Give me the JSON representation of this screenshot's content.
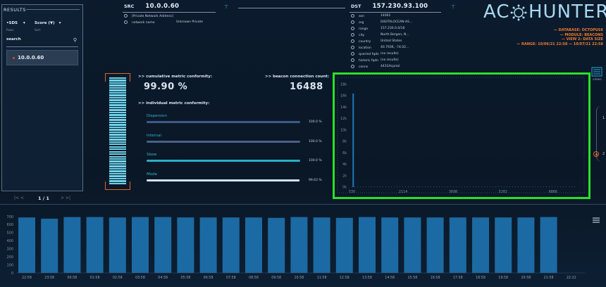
{
  "results": {
    "title": "RESULTS",
    "filter_value": "•SDS",
    "filter_label": "Score",
    "filter_arrow": "(▼)",
    "rows_label": "Rows",
    "sort_label": "Sort",
    "search_placeholder": "search",
    "items": [
      {
        "label": "10.0.0.60"
      }
    ],
    "pager": {
      "prev": "|<   <",
      "page": "1 / 1",
      "next": ">   >|"
    }
  },
  "src": {
    "label": "SRC",
    "ip": "10.0.0.60",
    "rows": [
      {
        "key": "[Private Network Address]",
        "value": ""
      },
      {
        "key": "network name",
        "value": "Unknown Private"
      }
    ]
  },
  "dst": {
    "label": "DST",
    "ip": "157.230.93.100",
    "rows": [
      {
        "key": "asn",
        "value": "14061"
      },
      {
        "key": "org",
        "value": "DIGITALOCEAN-AS..."
      },
      {
        "key": "range",
        "value": "157.230.0.0/16"
      },
      {
        "key": "city",
        "value": "North Bergen, N..."
      },
      {
        "key": "country",
        "value": "United States"
      },
      {
        "key": "location",
        "value": "40.7936, -74.02..."
      },
      {
        "key": "queried fqdn",
        "value": "(no results)"
      },
      {
        "key": "historic fqdn",
        "value": "(no results)"
      },
      {
        "key": "conns",
        "value": "4431/tcp/ssl"
      }
    ]
  },
  "logo": {
    "left": "AC",
    "right": "HUNTER"
  },
  "db_info": [
    "— DATABASE: OCTOPUS6",
    "— MODULE: BEACONS",
    "— VIEW 2: DATA SIZE",
    "— RANGE: 10/06/21 22:58 — 10/07/21 22:58"
  ],
  "conformity": {
    "cumulative_label": ">> cumulative metric conformity:",
    "cumulative_value": "99.90 %",
    "conn_count_label": ">> beacon connection count:",
    "conn_count_value": "16488",
    "individual_label": ">> individual metric conformity:",
    "gauge_fraction": 0.999,
    "metrics": [
      {
        "name": "Dispersion",
        "value": "100.0 %",
        "fraction": 1.0,
        "color": "#3f5a8a"
      },
      {
        "name": "Interval",
        "value": "100.0 %",
        "fraction": 1.0,
        "color": "#4a5f88"
      },
      {
        "name": "Skew",
        "value": "100.0 %",
        "fraction": 1.0,
        "color": "#27b0c7"
      },
      {
        "name": "Mode",
        "value": "99.63 %",
        "fraction": 0.9963,
        "color": "#cfe3f2"
      }
    ]
  },
  "side": {
    "views_label": "views",
    "step1": "1",
    "step2": "2"
  },
  "chart_data": [
    {
      "type": "bar",
      "title": "",
      "y_ticks": [
        "0k",
        "2k",
        "4k",
        "6k",
        "8k",
        "10k",
        "12k",
        "14k",
        "16k",
        "18k"
      ],
      "x_ticks": [
        "530",
        "2114",
        "3698",
        "5282",
        "6866"
      ],
      "ylim": [
        0,
        18000
      ],
      "xlim": [
        530,
        7900
      ],
      "points": [
        {
          "x": 670,
          "y": 16400
        }
      ],
      "baseline_note": ""
    },
    {
      "type": "bar",
      "title": "",
      "y_ticks": [
        "0",
        "100",
        "200",
        "300",
        "400",
        "500",
        "600",
        "700"
      ],
      "ylim": [
        0,
        700
      ],
      "categories": [
        "22:58",
        "23:58",
        "00:58",
        "01:58",
        "02:58",
        "03:58",
        "04:58",
        "05:58",
        "06:58",
        "07:58",
        "08:58",
        "09:58",
        "10:58",
        "11:58",
        "12:58",
        "13:58",
        "14:58",
        "15:58",
        "16:58",
        "17:58",
        "18:58",
        "19:58",
        "20:58",
        "21:58",
        "22:22"
      ],
      "values": [
        690,
        675,
        695,
        695,
        690,
        695,
        695,
        690,
        690,
        690,
        690,
        685,
        695,
        690,
        685,
        695,
        690,
        690,
        690,
        690,
        690,
        690,
        690,
        695,
        0
      ]
    }
  ]
}
